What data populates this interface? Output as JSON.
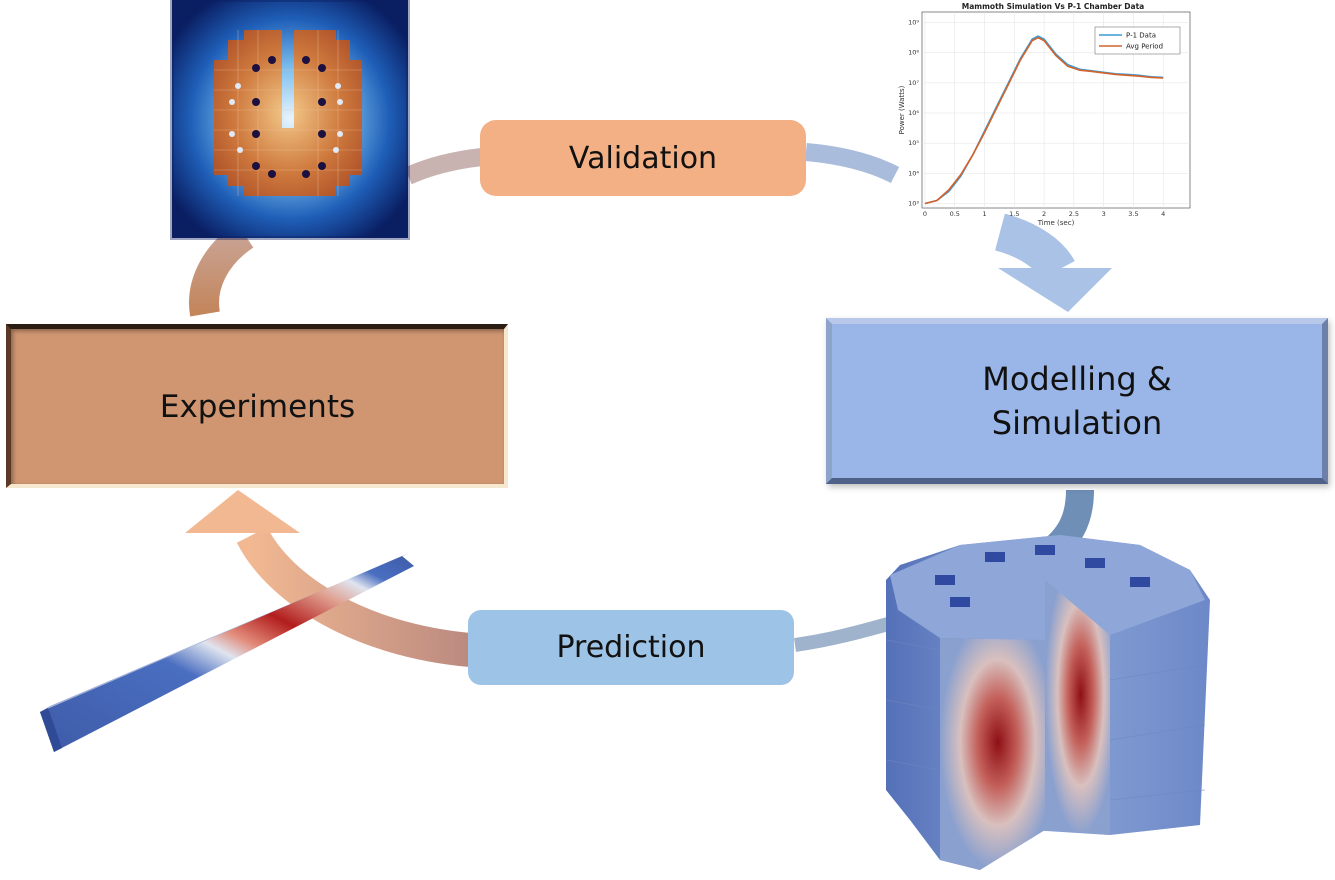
{
  "diagram": {
    "boxes": {
      "experiments": "Experiments",
      "modelling_line1": "Modelling &",
      "modelling_line2": "Simulation"
    },
    "pills": {
      "validation": "Validation",
      "prediction": "Prediction"
    },
    "colors": {
      "experiments_fill": "#d09672",
      "modelling_fill": "#9ab6e8",
      "validation_fill": "#f3b085",
      "prediction_fill": "#9dc3e6"
    }
  },
  "chart_data": {
    "type": "line",
    "title": "Mammoth Simulation Vs P-1 Chamber Data",
    "xlabel": "Time (sec)",
    "ylabel": "Power (Watts)",
    "x_ticks": [
      "0",
      "0.5",
      "1",
      "1.5",
      "2",
      "2.5",
      "3",
      "3.5",
      "4"
    ],
    "y_ticks": [
      "10³",
      "10⁴",
      "10⁵",
      "10⁶",
      "10⁷",
      "10⁸",
      "10⁹"
    ],
    "xlim": [
      -0.05,
      4.45
    ],
    "ylim_log10": [
      2.85,
      9.35
    ],
    "y_scale": "log",
    "legend_position": "top-right",
    "series": [
      {
        "name": "P-1 Data",
        "color": "#3a9bd6",
        "x": [
          0,
          0.2,
          0.4,
          0.6,
          0.8,
          1.0,
          1.2,
          1.4,
          1.6,
          1.8,
          1.9,
          2.0,
          2.2,
          2.4,
          2.6,
          2.8,
          3.0,
          3.2,
          3.4,
          3.6,
          3.8,
          4.0
        ],
        "y_log10": [
          3.0,
          3.1,
          3.4,
          3.9,
          4.6,
          5.4,
          6.2,
          7.0,
          7.8,
          8.45,
          8.55,
          8.45,
          7.95,
          7.6,
          7.45,
          7.4,
          7.35,
          7.3,
          7.28,
          7.25,
          7.2,
          7.18
        ]
      },
      {
        "name": "Avg Period",
        "color": "#d4622a",
        "x": [
          0,
          0.2,
          0.4,
          0.6,
          0.8,
          1.0,
          1.2,
          1.4,
          1.6,
          1.8,
          1.9,
          2.0,
          2.2,
          2.4,
          2.6,
          2.8,
          3.0,
          3.2,
          3.4,
          3.6,
          3.8,
          4.0
        ],
        "y_log10": [
          3.0,
          3.1,
          3.45,
          3.95,
          4.6,
          5.35,
          6.15,
          6.95,
          7.75,
          8.4,
          8.5,
          8.4,
          7.9,
          7.55,
          7.42,
          7.38,
          7.33,
          7.28,
          7.25,
          7.22,
          7.18,
          7.16
        ]
      }
    ]
  }
}
